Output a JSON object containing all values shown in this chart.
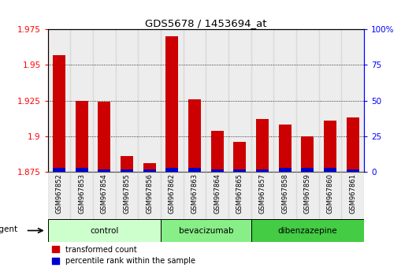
{
  "title": "GDS5678 / 1453694_at",
  "samples": [
    "GSM967852",
    "GSM967853",
    "GSM967854",
    "GSM967855",
    "GSM967856",
    "GSM967862",
    "GSM967863",
    "GSM967864",
    "GSM967865",
    "GSM967857",
    "GSM967858",
    "GSM967859",
    "GSM967860",
    "GSM967861"
  ],
  "transformed_count": [
    1.957,
    1.925,
    1.924,
    1.886,
    1.881,
    1.97,
    1.926,
    1.904,
    1.896,
    1.912,
    1.908,
    1.9,
    1.911,
    1.913
  ],
  "percentile_rank": [
    3,
    3,
    2,
    2,
    2,
    3,
    3,
    2,
    2,
    2,
    3,
    3,
    3,
    2
  ],
  "groups": [
    {
      "label": "control",
      "start": 0,
      "end": 5,
      "color": "#ccffcc"
    },
    {
      "label": "bevacizumab",
      "start": 5,
      "end": 9,
      "color": "#88ee88"
    },
    {
      "label": "dibenzazepine",
      "start": 9,
      "end": 14,
      "color": "#44cc44"
    }
  ],
  "y_min": 1.875,
  "y_max": 1.975,
  "y_ticks": [
    1.875,
    1.9,
    1.925,
    1.95,
    1.975
  ],
  "y2_ticks": [
    0,
    25,
    50,
    75,
    100
  ],
  "bar_color_red": "#cc0000",
  "bar_color_blue": "#0000cc",
  "bar_width": 0.55,
  "percentile_scale": 100,
  "legend_red": "transformed count",
  "legend_blue": "percentile rank within the sample",
  "agent_label": "agent",
  "col_bg_odd": "#d8d8d8",
  "col_bg_even": "#e8e8e8"
}
